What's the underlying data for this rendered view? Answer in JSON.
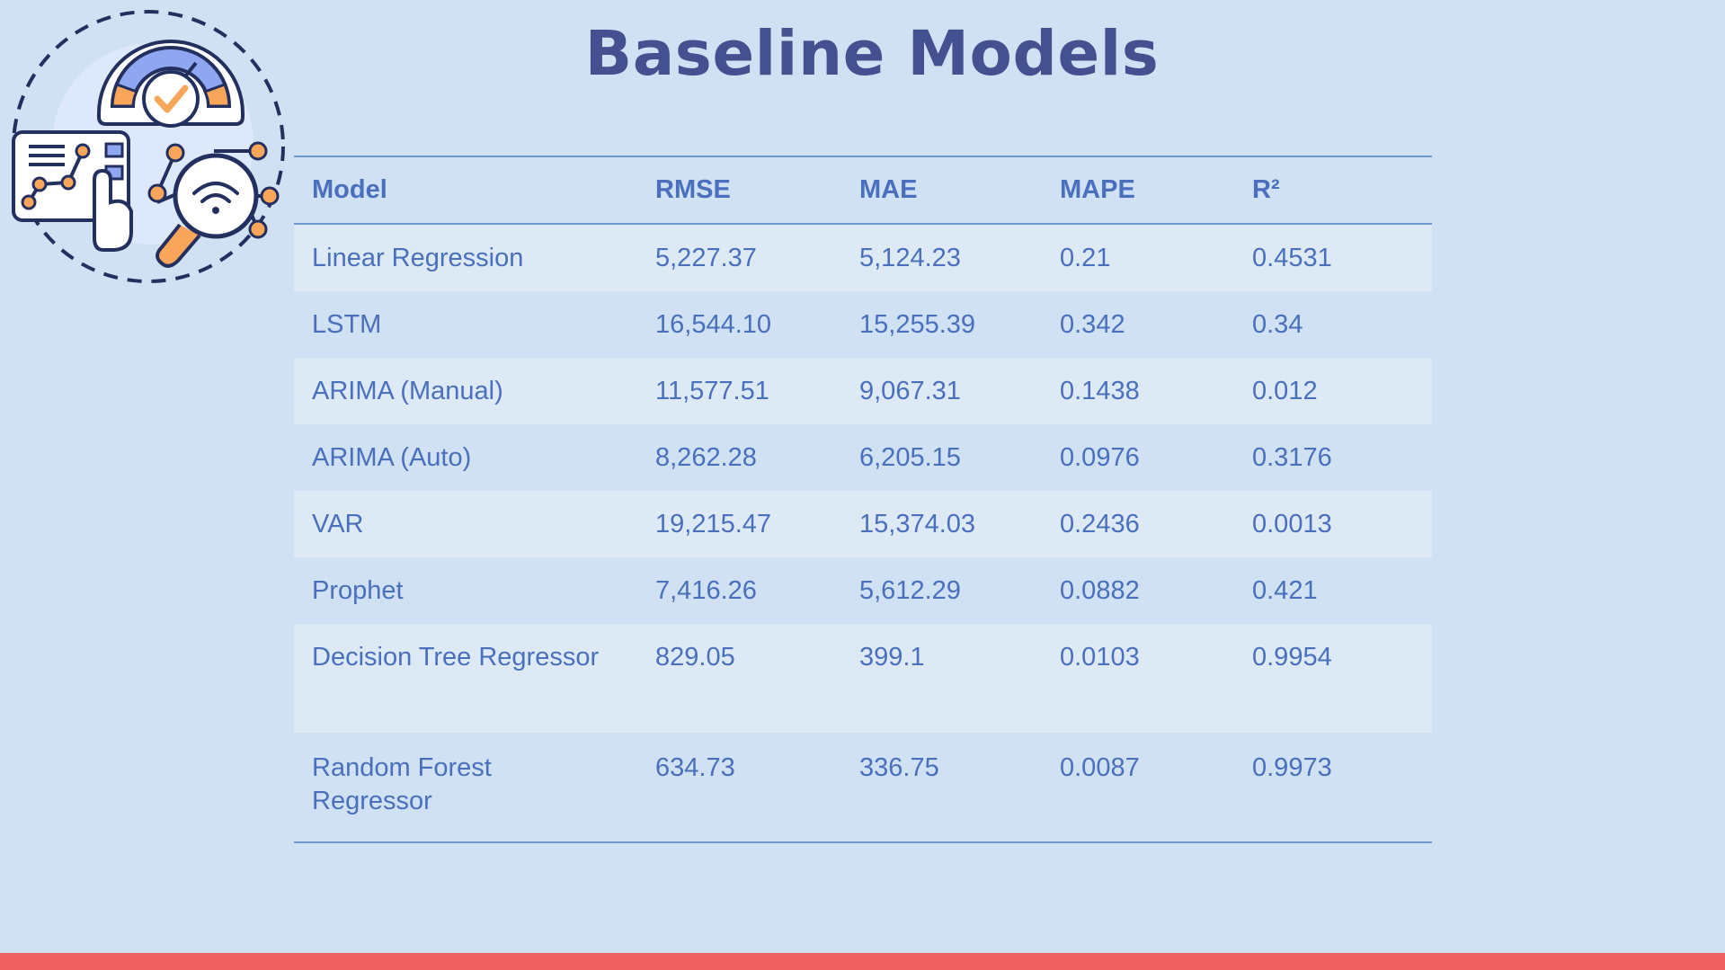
{
  "title": "Baseline Models",
  "table": {
    "headers": [
      "Model",
      "RMSE",
      "MAE",
      "MAPE",
      "R²"
    ],
    "rows": [
      [
        "Linear Regression",
        "5,227.37",
        "5,124.23",
        "0.21",
        "0.4531"
      ],
      [
        "LSTM",
        "16,544.10",
        "15,255.39",
        "0.342",
        "0.34"
      ],
      [
        "ARIMA (Manual)",
        "11,577.51",
        "9,067.31",
        "0.1438",
        "0.012"
      ],
      [
        "ARIMA (Auto)",
        "8,262.28",
        "6,205.15",
        "0.0976",
        "0.3176"
      ],
      [
        "VAR",
        "19,215.47",
        "15,374.03",
        "0.2436",
        "0.0013"
      ],
      [
        "Prophet",
        "7,416.26",
        "5,612.29",
        "0.0882",
        "0.421"
      ],
      [
        "Decision Tree Regressor",
        "829.05",
        "399.1",
        "0.0103",
        "0.9954"
      ],
      [
        "Random Forest Regressor",
        "634.73",
        "336.75",
        "0.0087",
        "0.9973"
      ]
    ]
  },
  "colors": {
    "background": "#cfe1f2",
    "title": "#44508f",
    "table_text": "#4a6fbc",
    "accent_bar": "#f06164",
    "icon_orange": "#f9a65a"
  },
  "icons": [
    "speedometer-check-icon",
    "chart-touch-panel-icon",
    "magnifier-network-icon"
  ]
}
